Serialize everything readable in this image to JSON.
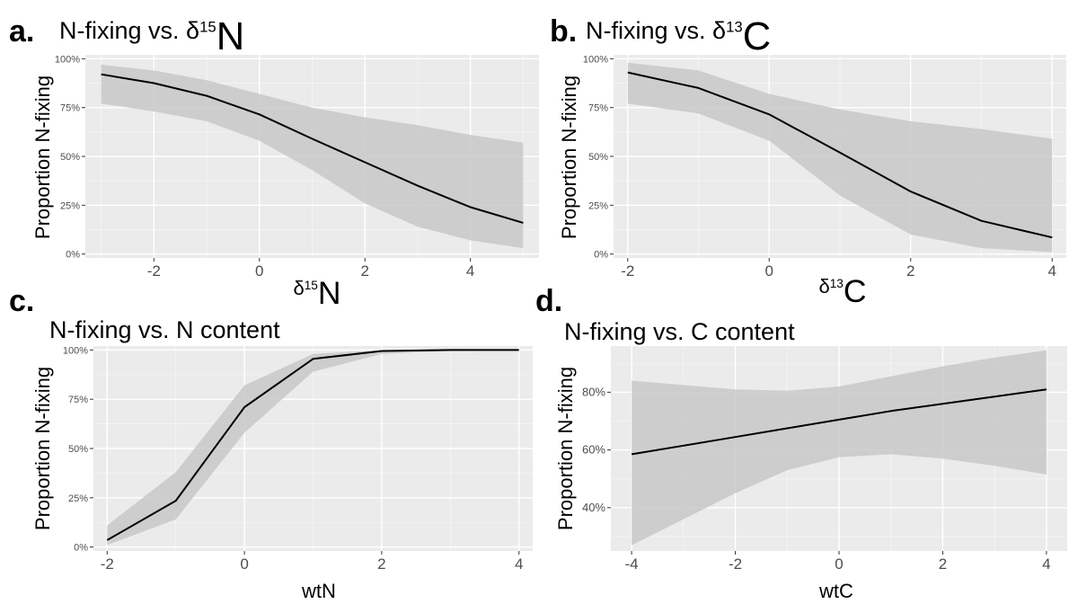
{
  "figure": {
    "colors": {
      "panel_background": "#ebebeb",
      "grid_major": "#ffffff",
      "ribbon": "#c8c8c8",
      "line": "#000000",
      "tick_text": "#4d4d4d"
    }
  },
  "chart_data": [
    {
      "id": "a",
      "type": "line",
      "letter": "a.",
      "title": "N-fixing vs. δ15N",
      "title_parts": {
        "pre": "N-fixing vs. δ",
        "sup": "15",
        "post": "N"
      },
      "xlabel": "δ15N",
      "xlabel_parts": {
        "pre": "δ",
        "sup": "15",
        "post": "N"
      },
      "ylabel": "Proportion N-fixing",
      "xlim": [
        -3.3,
        5.3
      ],
      "ylim": [
        -0.02,
        1.02
      ],
      "x_ticks": [
        -2,
        0,
        2,
        4
      ],
      "x_tick_labels": [
        "-2",
        "0",
        "2",
        "4"
      ],
      "y_ticks": [
        0,
        0.25,
        0.5,
        0.75,
        1.0
      ],
      "y_tick_labels": [
        "0%",
        "25%",
        "50%",
        "75%",
        "100%"
      ],
      "grid": true,
      "series": [
        {
          "x": [
            -3,
            -2,
            -1,
            0,
            1,
            2,
            3,
            4,
            5
          ],
          "y": [
            0.92,
            0.875,
            0.81,
            0.715,
            0.59,
            0.47,
            0.35,
            0.24,
            0.16
          ],
          "lower": [
            0.77,
            0.73,
            0.68,
            0.58,
            0.43,
            0.26,
            0.14,
            0.07,
            0.03
          ],
          "upper": [
            0.97,
            0.94,
            0.89,
            0.82,
            0.75,
            0.7,
            0.66,
            0.61,
            0.57
          ]
        }
      ]
    },
    {
      "id": "b",
      "type": "line",
      "letter": "b.",
      "title": "N-fixing vs. δ13C",
      "title_parts": {
        "pre": "N-fixing vs. δ",
        "sup": "13",
        "post": "C"
      },
      "xlabel": "δ13C",
      "xlabel_parts": {
        "pre": "δ",
        "sup": "13",
        "post": "C"
      },
      "ylabel": "Proportion N-fixing",
      "xlim": [
        -2.2,
        4.2
      ],
      "ylim": [
        -0.02,
        1.02
      ],
      "x_ticks": [
        -2,
        0,
        2,
        4
      ],
      "x_tick_labels": [
        "-2",
        "0",
        "2",
        "4"
      ],
      "y_ticks": [
        0,
        0.25,
        0.5,
        0.75,
        1.0
      ],
      "y_tick_labels": [
        "0%",
        "25%",
        "50%",
        "75%",
        "100%"
      ],
      "grid": true,
      "series": [
        {
          "x": [
            -2,
            -1,
            0,
            1,
            2,
            3,
            4
          ],
          "y": [
            0.93,
            0.85,
            0.715,
            0.52,
            0.32,
            0.17,
            0.085
          ],
          "lower": [
            0.77,
            0.72,
            0.58,
            0.3,
            0.1,
            0.03,
            0.01
          ],
          "upper": [
            0.98,
            0.94,
            0.82,
            0.74,
            0.68,
            0.64,
            0.59
          ]
        }
      ]
    },
    {
      "id": "c",
      "type": "line",
      "letter": "c.",
      "title": "N-fixing vs. N content",
      "xlabel": "wtN",
      "ylabel": "Proportion N-fixing",
      "xlim": [
        -2.2,
        4.2
      ],
      "ylim": [
        -0.02,
        1.02
      ],
      "x_ticks": [
        -2,
        0,
        2,
        4
      ],
      "x_tick_labels": [
        "-2",
        "0",
        "2",
        "4"
      ],
      "y_ticks": [
        0,
        0.25,
        0.5,
        0.75,
        1.0
      ],
      "y_tick_labels": [
        "0%",
        "25%",
        "50%",
        "75%",
        "100%"
      ],
      "grid": true,
      "series": [
        {
          "x": [
            -2,
            -1,
            0,
            1,
            2,
            3,
            4
          ],
          "y": [
            0.035,
            0.235,
            0.71,
            0.955,
            0.995,
            1.0,
            1.0
          ],
          "lower": [
            0.01,
            0.14,
            0.58,
            0.89,
            0.98,
            0.995,
            1.0
          ],
          "upper": [
            0.11,
            0.38,
            0.82,
            0.98,
            0.999,
            1.0,
            1.0
          ]
        }
      ]
    },
    {
      "id": "d",
      "type": "line",
      "letter": "d.",
      "title": "N-fixing vs. C content",
      "xlabel": "wtC",
      "ylabel": "Proportion N-fixing",
      "xlim": [
        -4.4,
        4.4
      ],
      "ylim": [
        0.25,
        0.96
      ],
      "x_ticks": [
        -4,
        -2,
        0,
        2,
        4
      ],
      "x_tick_labels": [
        "-4",
        "-2",
        "0",
        "2",
        "4"
      ],
      "y_ticks": [
        0.4,
        0.6,
        0.8
      ],
      "y_tick_labels": [
        "40%",
        "60%",
        "80%"
      ],
      "grid": true,
      "series": [
        {
          "x": [
            -4,
            -3,
            -2,
            -1,
            0,
            1,
            2,
            3,
            4
          ],
          "y": [
            0.585,
            0.615,
            0.645,
            0.675,
            0.705,
            0.735,
            0.76,
            0.785,
            0.81
          ],
          "lower": [
            0.27,
            0.36,
            0.45,
            0.53,
            0.575,
            0.585,
            0.57,
            0.545,
            0.515
          ],
          "upper": [
            0.84,
            0.825,
            0.81,
            0.805,
            0.82,
            0.855,
            0.89,
            0.92,
            0.945
          ]
        }
      ]
    }
  ]
}
